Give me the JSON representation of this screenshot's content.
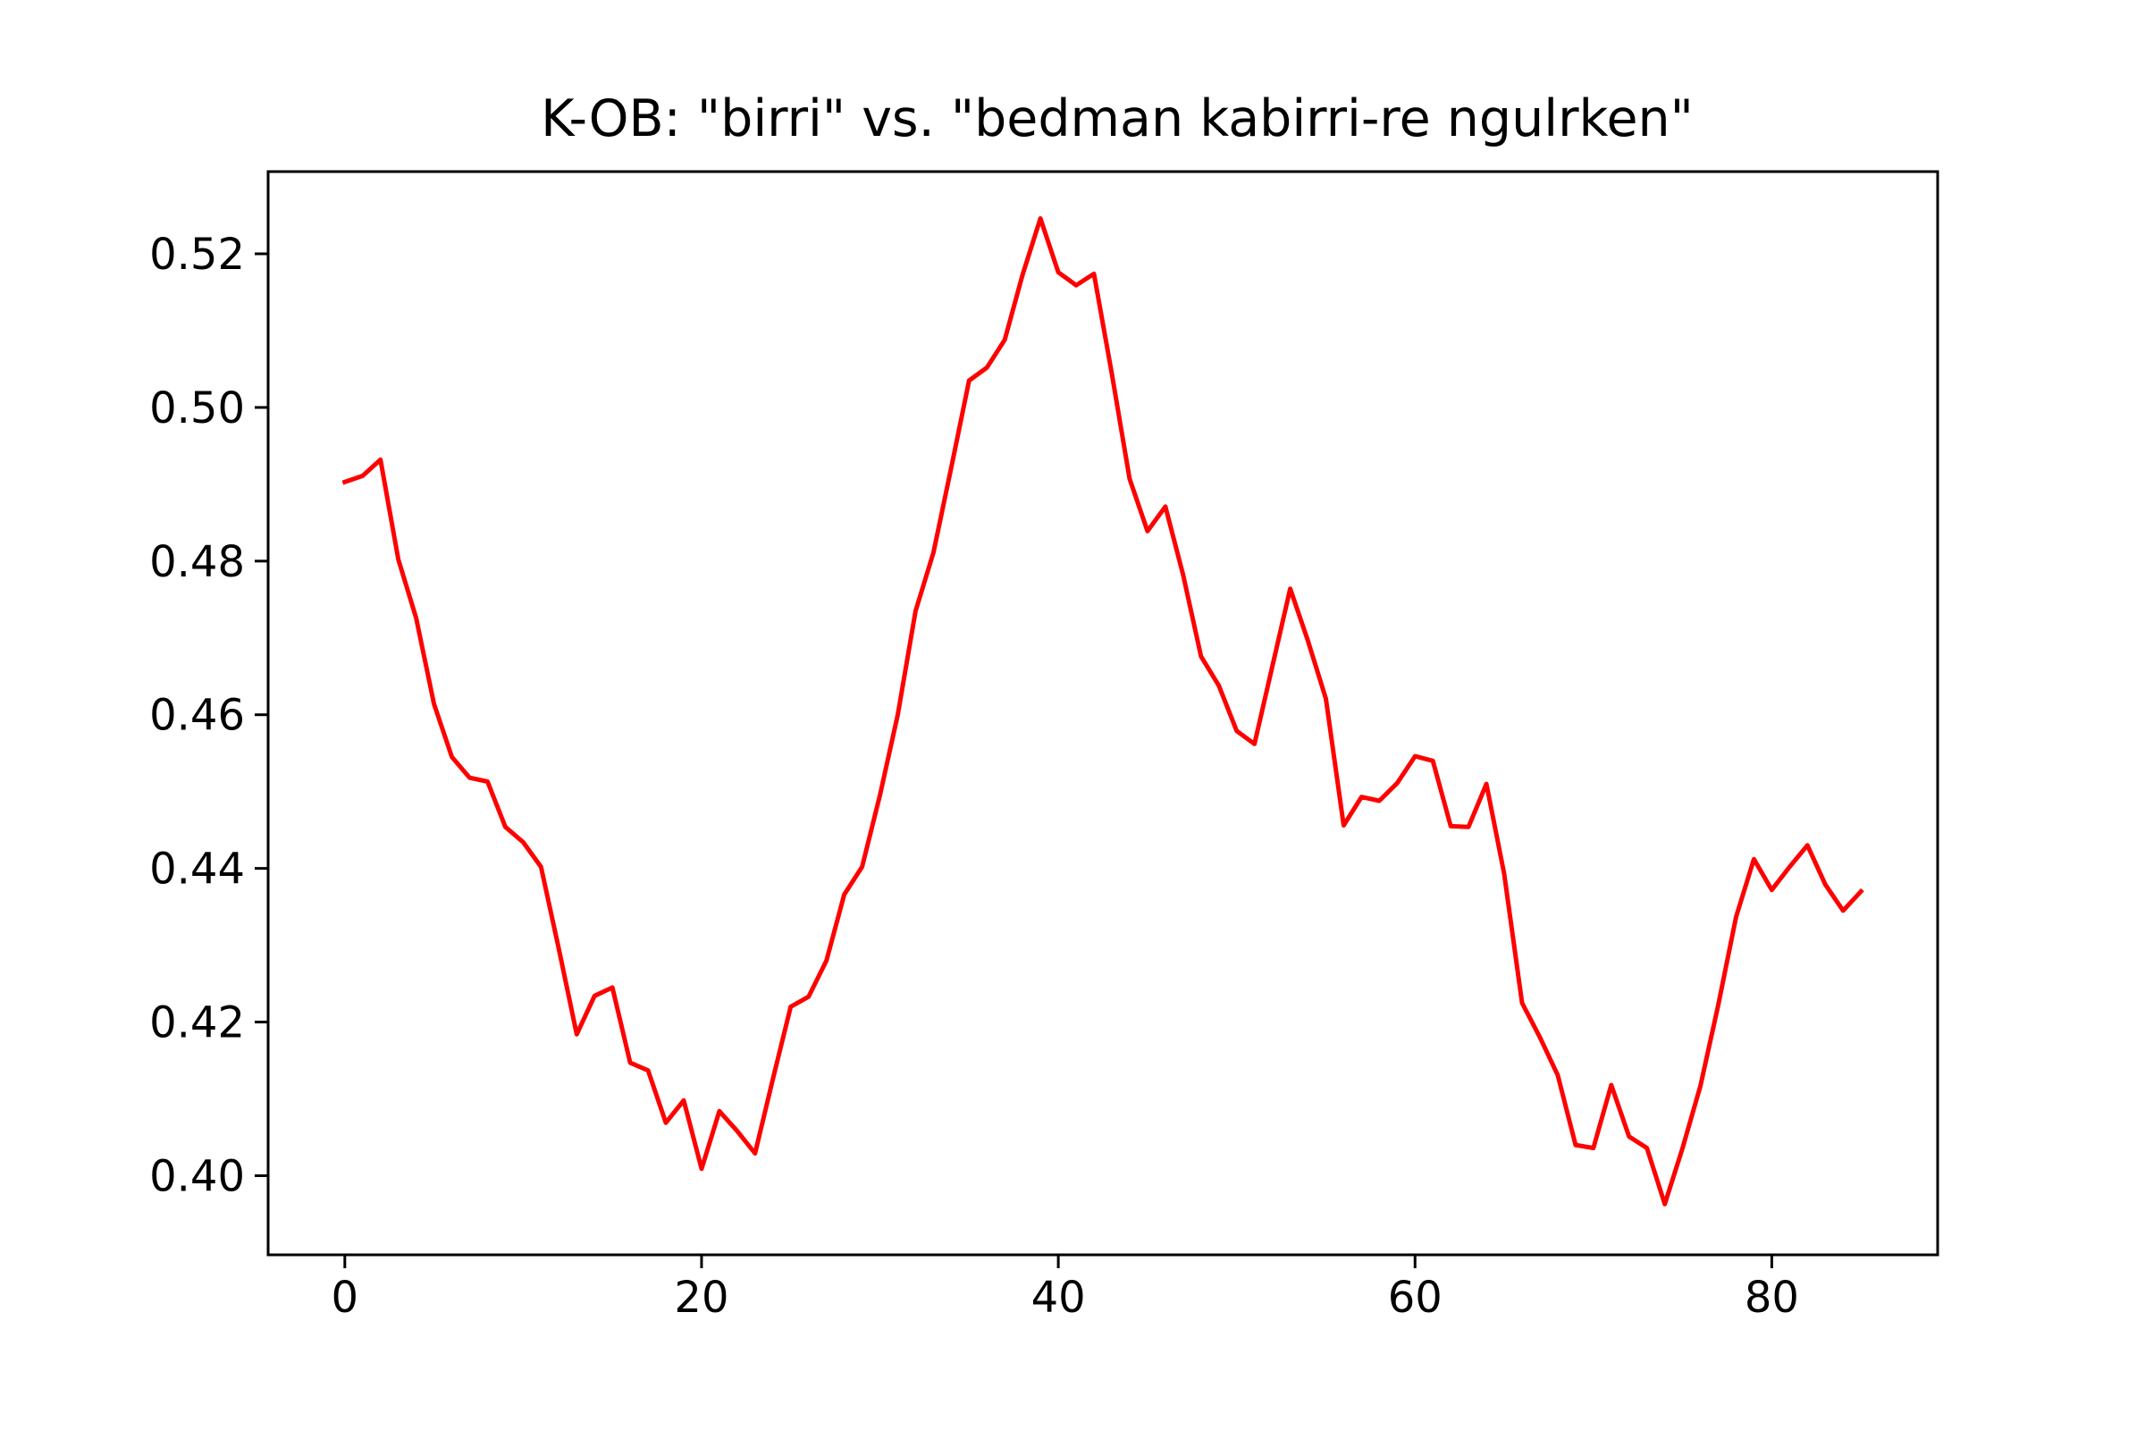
{
  "chart_data": {
    "type": "line",
    "title": "K-OB: \"birri\" vs. \"bedman kabirri-re ngulrken\"",
    "xlabel": "",
    "ylabel": "",
    "xlim": [
      -4.3,
      89.3
    ],
    "ylim": [
      0.3897,
      0.5307
    ],
    "xticks": [
      0,
      20,
      40,
      60,
      80
    ],
    "xtick_labels": [
      "0",
      "20",
      "40",
      "60",
      "80"
    ],
    "yticks": [
      0.4,
      0.42,
      0.44,
      0.46,
      0.48,
      0.5,
      0.52
    ],
    "ytick_labels": [
      "0.40",
      "0.42",
      "0.44",
      "0.46",
      "0.48",
      "0.50",
      "0.52"
    ],
    "grid": false,
    "legend": "none",
    "series": [
      {
        "color": "#ff0000",
        "x": [
          0,
          1,
          2,
          3,
          4,
          5,
          6,
          7,
          8,
          9,
          10,
          11,
          12,
          13,
          14,
          15,
          16,
          17,
          18,
          19,
          20,
          21,
          22,
          23,
          24,
          25,
          26,
          27,
          28,
          29,
          30,
          31,
          32,
          33,
          34,
          35,
          36,
          37,
          38,
          39,
          40,
          41,
          42,
          43,
          44,
          45,
          46,
          47,
          48,
          49,
          50,
          51,
          52,
          53,
          54,
          55,
          56,
          57,
          58,
          59,
          60,
          61,
          62,
          63,
          64,
          65,
          66,
          67,
          68,
          69,
          70,
          71,
          72,
          73,
          74,
          75,
          76,
          77,
          78,
          79,
          80,
          81,
          82,
          83,
          84,
          85
        ],
        "y": [
          0.4903,
          0.4911,
          0.4932,
          0.4802,
          0.4726,
          0.4614,
          0.4545,
          0.4518,
          0.4513,
          0.4454,
          0.4434,
          0.4402,
          0.4295,
          0.4184,
          0.4234,
          0.4245,
          0.4147,
          0.4137,
          0.4069,
          0.4098,
          0.4009,
          0.4084,
          0.4058,
          0.4029,
          0.4126,
          0.422,
          0.4233,
          0.428,
          0.4366,
          0.4402,
          0.4495,
          0.46,
          0.4735,
          0.4811,
          0.4922,
          0.5035,
          0.5052,
          0.5088,
          0.5173,
          0.5246,
          0.5176,
          0.5159,
          0.5174,
          0.5044,
          0.4907,
          0.4839,
          0.4871,
          0.4782,
          0.4676,
          0.4638,
          0.4579,
          0.4562,
          0.4663,
          0.4764,
          0.4696,
          0.4621,
          0.4456,
          0.4493,
          0.4488,
          0.4511,
          0.4546,
          0.454,
          0.4455,
          0.4454,
          0.451,
          0.4393,
          0.4225,
          0.418,
          0.4131,
          0.404,
          0.4036,
          0.4118,
          0.4051,
          0.4036,
          0.3963,
          0.4036,
          0.4117,
          0.4222,
          0.4337,
          0.4412,
          0.4372,
          0.4402,
          0.443,
          0.4379,
          0.4345,
          0.437
        ]
      }
    ]
  }
}
